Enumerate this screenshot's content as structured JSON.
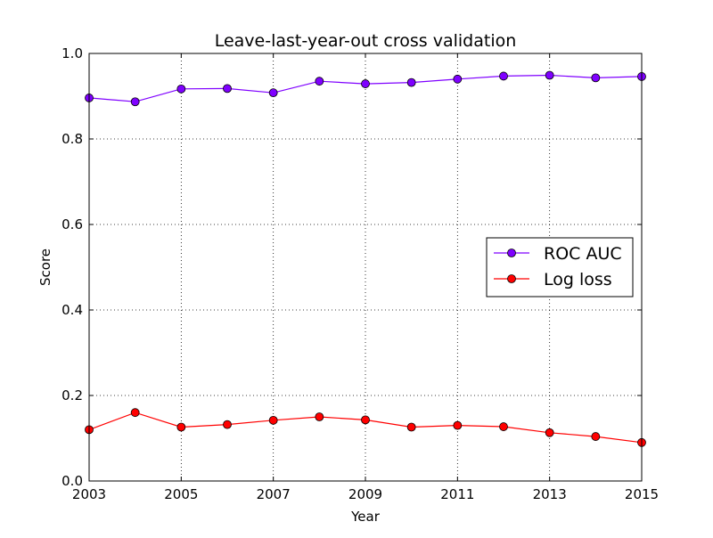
{
  "chart_data": {
    "type": "line",
    "title": "Leave-last-year-out cross validation",
    "xlabel": "Year",
    "ylabel": "Score",
    "xlim": [
      2003,
      2015
    ],
    "ylim": [
      0.0,
      1.0
    ],
    "x_ticks": [
      "2003",
      "2005",
      "2007",
      "2009",
      "2011",
      "2013",
      "2015"
    ],
    "y_ticks": [
      "0.0",
      "0.2",
      "0.4",
      "0.6",
      "0.8",
      "1.0"
    ],
    "grid": true,
    "legend_position": "center-right",
    "x": [
      2003,
      2004,
      2005,
      2006,
      2007,
      2008,
      2009,
      2010,
      2011,
      2012,
      2013,
      2014,
      2015
    ],
    "series": [
      {
        "name": "ROC AUC",
        "color": "#7f00ff",
        "values": [
          0.896,
          0.887,
          0.917,
          0.918,
          0.908,
          0.935,
          0.929,
          0.932,
          0.94,
          0.947,
          0.949,
          0.943,
          0.946
        ]
      },
      {
        "name": "Log loss",
        "color": "#ff0000",
        "values": [
          0.12,
          0.16,
          0.126,
          0.132,
          0.142,
          0.15,
          0.143,
          0.126,
          0.13,
          0.127,
          0.113,
          0.104,
          0.09
        ]
      }
    ]
  }
}
